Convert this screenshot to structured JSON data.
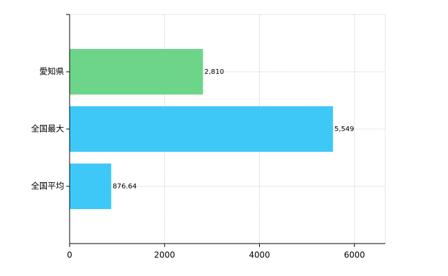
{
  "chart_data": {
    "type": "hbar",
    "categories": [
      "愛知県",
      "全国最大",
      "全国平均"
    ],
    "values": [
      2810,
      5549,
      876.64
    ],
    "value_labels": [
      "2,810",
      "5,549",
      "876.64"
    ],
    "colors": [
      "#6dd58a",
      "#3ec8f7",
      "#3ec8f7"
    ],
    "xlim": [
      0,
      6650
    ],
    "xticks": [
      0,
      2000,
      4000,
      6000
    ],
    "grid": true
  }
}
